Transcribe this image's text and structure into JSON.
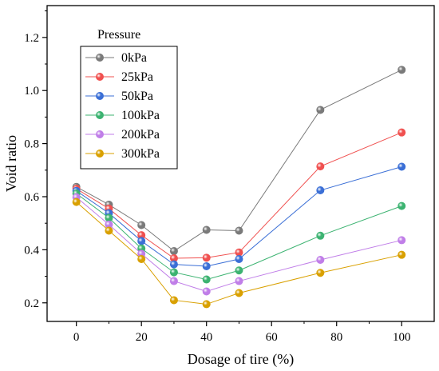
{
  "chart_data": {
    "type": "line",
    "x": [
      0,
      10,
      20,
      30,
      40,
      50,
      75,
      100
    ],
    "xlabel": "Dosage of tire (%)",
    "ylabel": "Void ratio",
    "xlim": [
      -9,
      110
    ],
    "ylim": [
      0.13,
      1.32
    ],
    "xticks": [
      0,
      20,
      40,
      60,
      80,
      100
    ],
    "xtick_labels": [
      "0",
      "20",
      "40",
      "60",
      "80",
      "100"
    ],
    "yticks": [
      0.2,
      0.4,
      0.6,
      0.8,
      1.0,
      1.2
    ],
    "ytick_labels": [
      "0.2",
      "0.4",
      "0.6",
      "0.8",
      "1.0",
      "1.2"
    ],
    "grid": false,
    "legend_title": "Pressure",
    "legend_position": "top-left",
    "series": [
      {
        "name": "0kPa",
        "color": "#7a7a7a",
        "values": [
          0.637,
          0.57,
          0.493,
          0.395,
          0.475,
          0.472,
          0.927,
          1.078
        ]
      },
      {
        "name": "25kPa",
        "color": "#f0504f",
        "values": [
          0.63,
          0.555,
          0.455,
          0.368,
          0.37,
          0.39,
          0.714,
          0.842
        ]
      },
      {
        "name": "50kPa",
        "color": "#3b6fd6",
        "values": [
          0.622,
          0.538,
          0.433,
          0.345,
          0.338,
          0.365,
          0.624,
          0.713
        ]
      },
      {
        "name": "100kPa",
        "color": "#3cb371",
        "values": [
          0.612,
          0.52,
          0.405,
          0.315,
          0.288,
          0.322,
          0.453,
          0.565
        ]
      },
      {
        "name": "200kPa",
        "color": "#c07ee8",
        "values": [
          0.598,
          0.495,
          0.385,
          0.282,
          0.243,
          0.282,
          0.362,
          0.436
        ]
      },
      {
        "name": "300kPa",
        "color": "#d9a000",
        "values": [
          0.58,
          0.472,
          0.365,
          0.21,
          0.195,
          0.237,
          0.313,
          0.381
        ]
      }
    ]
  }
}
